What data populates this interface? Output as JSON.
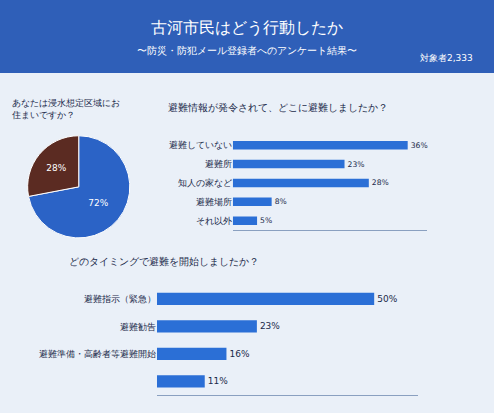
{
  "header": {
    "title": "古河市民はどう行動したか",
    "subtitle": "〜防災・防犯メール登録者へのアンケート結果〜",
    "note": "対象者2,333"
  },
  "chart_data": [
    {
      "type": "pie",
      "title": "あなたは浸水想定区域にお住まいですか？",
      "values": [
        72,
        28
      ],
      "value_labels": [
        "72%",
        "28%"
      ],
      "colors": [
        "#2b63c6",
        "#5b2b22"
      ],
      "data_labels": true
    },
    {
      "type": "bar",
      "orientation": "horizontal",
      "title": "避難情報が発令されて、どこに避難しましたか？",
      "categories": [
        "避難していない",
        "避難所",
        "知人の家など",
        "避難場所",
        "それ以外"
      ],
      "values": [
        36,
        23,
        28,
        8,
        5
      ],
      "value_labels": [
        "36%",
        "23%",
        "28%",
        "8%",
        "5%"
      ],
      "color": "#2b6fd6",
      "xlim": [
        0,
        40
      ],
      "tick_labels": "y",
      "grid": false,
      "data_labels": true
    },
    {
      "type": "bar",
      "orientation": "horizontal",
      "title": "どのタイミングで避難を開始しましたか？",
      "categories": [
        "避難指示（緊急）",
        "避難勧告",
        "避難準備・高齢者等避難開始",
        null
      ],
      "values": [
        50,
        23,
        16,
        11
      ],
      "value_labels": [
        "50%",
        "23%",
        "16%",
        "11%"
      ],
      "color": "#2b6fd6",
      "xlim": [
        0,
        60
      ],
      "tick_labels": "y",
      "grid": false,
      "data_labels": true
    }
  ]
}
